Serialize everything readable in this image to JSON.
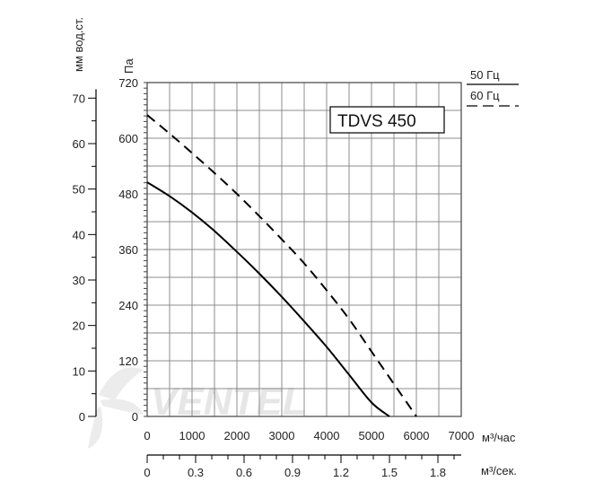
{
  "chart_data": {
    "type": "line",
    "model_label": "TDVS 450",
    "legend": [
      {
        "label": "50 Гц",
        "style": "solid"
      },
      {
        "label": "60 Гц",
        "style": "dashed"
      }
    ],
    "watermark": "VENTEL",
    "xlabel": "м³/час",
    "xlim": [
      0,
      7000
    ],
    "x_ticks": [
      "0",
      "1000",
      "2000",
      "3000",
      "4000",
      "5000",
      "6000",
      "7000"
    ],
    "ylabel": "Па",
    "ylim": [
      0,
      720
    ],
    "y_ticks": [
      "0",
      "120",
      "240",
      "360",
      "480",
      "600",
      "720"
    ],
    "y2_label": "мм вод.ст.",
    "y2_ticks": [
      "0",
      "10",
      "20",
      "30",
      "40",
      "50",
      "60",
      "70"
    ],
    "x2_label": "м³/сек.",
    "x2_ticks": [
      "0",
      "0.3",
      "0.6",
      "0.9",
      "1.2",
      "1.5",
      "1.8"
    ],
    "grid": true,
    "series": [
      {
        "name": "50 Гц",
        "style": "solid",
        "x": [
          0,
          500,
          1000,
          1500,
          2000,
          2500,
          3000,
          3500,
          4000,
          4500,
          5000,
          5400
        ],
        "y": [
          505,
          475,
          440,
          400,
          355,
          308,
          258,
          205,
          150,
          90,
          30,
          0
        ]
      },
      {
        "name": "60 Гц",
        "style": "dashed",
        "x": [
          0,
          500,
          1000,
          1500,
          2000,
          2500,
          3000,
          3500,
          4000,
          4500,
          5000,
          5500,
          6000
        ],
        "y": [
          650,
          610,
          568,
          525,
          480,
          432,
          382,
          330,
          272,
          210,
          140,
          70,
          0
        ]
      }
    ]
  }
}
